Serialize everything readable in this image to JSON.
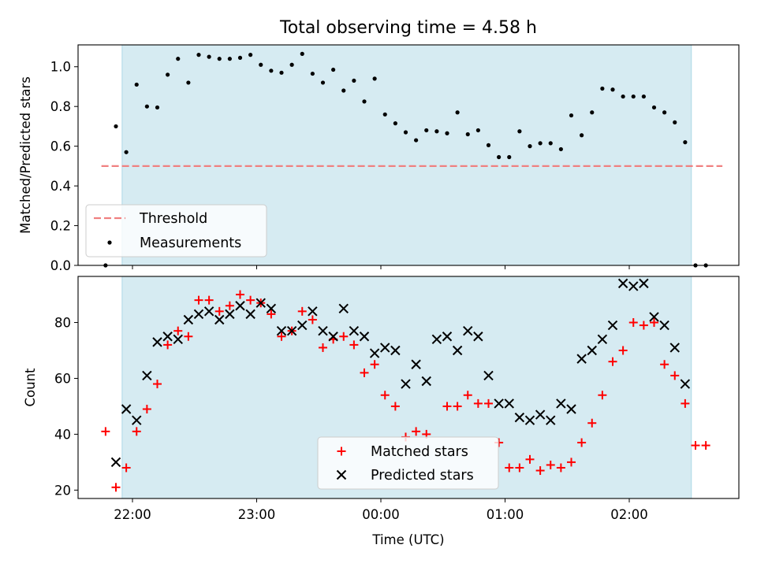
{
  "title": "Total observing time = 4.58 h",
  "colors": {
    "span_fill": "#add8e6",
    "threshold": "#f08080",
    "matched": "#ff0000",
    "predicted": "#000000",
    "measurements": "#000000"
  },
  "chart_data": [
    {
      "type": "scatter",
      "ylabel": "Matched/Predicted stars",
      "xlabel": "",
      "ylim": [
        0,
        1.11
      ],
      "yticks": [
        "0.0",
        "0.2",
        "0.4",
        "0.6",
        "0.8",
        "1.0"
      ],
      "observing_span": [
        "21:55",
        "02:30"
      ],
      "threshold": {
        "name": "Threshold",
        "value": 0.5,
        "x_range": [
          "21:45",
          "02:45"
        ]
      },
      "legend": {
        "placement": "lower-left",
        "entries": [
          "Threshold",
          "Measurements"
        ]
      },
      "series": [
        {
          "name": "Measurements",
          "x": [
            "21:47",
            "21:52",
            "21:57",
            "22:02",
            "22:07",
            "22:12",
            "22:17",
            "22:22",
            "22:27",
            "22:32",
            "22:37",
            "22:42",
            "22:47",
            "22:52",
            "22:57",
            "23:02",
            "23:07",
            "23:12",
            "23:17",
            "23:22",
            "23:27",
            "23:32",
            "23:37",
            "23:42",
            "23:47",
            "23:52",
            "23:57",
            "00:02",
            "00:07",
            "00:12",
            "00:17",
            "00:22",
            "00:27",
            "00:32",
            "00:37",
            "00:42",
            "00:47",
            "00:52",
            "00:57",
            "01:02",
            "01:07",
            "01:12",
            "01:17",
            "01:22",
            "01:27",
            "01:32",
            "01:37",
            "01:42",
            "01:47",
            "01:52",
            "01:57",
            "02:02",
            "02:07",
            "02:12",
            "02:17",
            "02:22",
            "02:27",
            "02:32",
            "02:37"
          ],
          "y": [
            0.0,
            0.7,
            0.57,
            0.91,
            0.8,
            0.795,
            0.96,
            1.04,
            0.92,
            1.06,
            1.05,
            1.04,
            1.04,
            1.045,
            1.06,
            1.01,
            0.98,
            0.97,
            1.01,
            1.065,
            0.965,
            0.92,
            0.985,
            0.88,
            0.93,
            0.825,
            0.94,
            0.76,
            0.715,
            0.67,
            0.63,
            0.68,
            0.675,
            0.665,
            0.77,
            0.66,
            0.68,
            0.605,
            0.545,
            0.545,
            0.675,
            0.6,
            0.615,
            0.615,
            0.585,
            0.755,
            0.655,
            0.77,
            0.89,
            0.885,
            0.85,
            0.85,
            0.85,
            0.795,
            0.77,
            0.72,
            0.62,
            0.0,
            0.0
          ]
        }
      ]
    },
    {
      "type": "scatter",
      "ylabel": "Count",
      "xlabel": "Time (UTC)",
      "ylim": [
        17,
        96.5
      ],
      "yticks": [
        "20",
        "40",
        "60",
        "80"
      ],
      "xticks": [
        "22:00",
        "23:00",
        "00:00",
        "01:00",
        "02:00"
      ],
      "observing_span": [
        "21:55",
        "02:30"
      ],
      "legend": {
        "placement": "lower-center",
        "entries": [
          "Matched stars",
          "Predicted stars"
        ]
      },
      "series": [
        {
          "name": "Matched stars",
          "marker": "plus",
          "x": [
            "21:47",
            "21:52",
            "21:57",
            "22:02",
            "22:07",
            "22:12",
            "22:17",
            "22:22",
            "22:27",
            "22:32",
            "22:37",
            "22:42",
            "22:47",
            "22:52",
            "22:57",
            "23:02",
            "23:07",
            "23:12",
            "23:17",
            "23:22",
            "23:27",
            "23:32",
            "23:37",
            "23:42",
            "23:47",
            "23:52",
            "23:57",
            "00:02",
            "00:07",
            "00:12",
            "00:17",
            "00:22",
            "00:27",
            "00:32",
            "00:37",
            "00:42",
            "00:47",
            "00:52",
            "00:57",
            "01:02",
            "01:07",
            "01:12",
            "01:17",
            "01:22",
            "01:27",
            "01:32",
            "01:37",
            "01:42",
            "01:47",
            "01:52",
            "01:57",
            "02:02",
            "02:07",
            "02:12",
            "02:17",
            "02:22",
            "02:27",
            "02:32",
            "02:37"
          ],
          "y": [
            41,
            21,
            28,
            41,
            49,
            58,
            72,
            77,
            75,
            88,
            88,
            84,
            86,
            90,
            88,
            87,
            83,
            75,
            77,
            84,
            81,
            71,
            74,
            75,
            72,
            62,
            65,
            54,
            50,
            39,
            41,
            40,
            null,
            50,
            50,
            54,
            51,
            51,
            37,
            28,
            28,
            31,
            27,
            29,
            28,
            30,
            37,
            44,
            54,
            66,
            70,
            80,
            79,
            80,
            65,
            61,
            51,
            36,
            36
          ]
        },
        {
          "name": "Predicted stars",
          "marker": "x",
          "x": [
            "21:52",
            "21:57",
            "22:02",
            "22:07",
            "22:12",
            "22:17",
            "22:22",
            "22:27",
            "22:32",
            "22:37",
            "22:42",
            "22:47",
            "22:52",
            "22:57",
            "23:02",
            "23:07",
            "23:12",
            "23:17",
            "23:22",
            "23:27",
            "23:32",
            "23:37",
            "23:42",
            "23:47",
            "23:52",
            "23:57",
            "00:02",
            "00:07",
            "00:12",
            "00:17",
            "00:22",
            "00:27",
            "00:32",
            "00:37",
            "00:42",
            "00:47",
            "00:52",
            "00:57",
            "01:02",
            "01:07",
            "01:12",
            "01:17",
            "01:22",
            "01:27",
            "01:32",
            "01:37",
            "01:42",
            "01:47",
            "01:52",
            "01:57",
            "02:02",
            "02:07",
            "02:12",
            "02:17",
            "02:22",
            "02:27",
            "02:32"
          ],
          "y": [
            30,
            49,
            45,
            61,
            73,
            75,
            74,
            81,
            83,
            84,
            81,
            83,
            86,
            83,
            87,
            85,
            77,
            77,
            79,
            84,
            77,
            75,
            85,
            77,
            75,
            69,
            71,
            70,
            58,
            65,
            59,
            74,
            75,
            70,
            77,
            75,
            61,
            51,
            51,
            46,
            45,
            47,
            45,
            51,
            49,
            67,
            70,
            74,
            79,
            94,
            93,
            94,
            82,
            79,
            71,
            58,
            null
          ]
        }
      ]
    }
  ]
}
